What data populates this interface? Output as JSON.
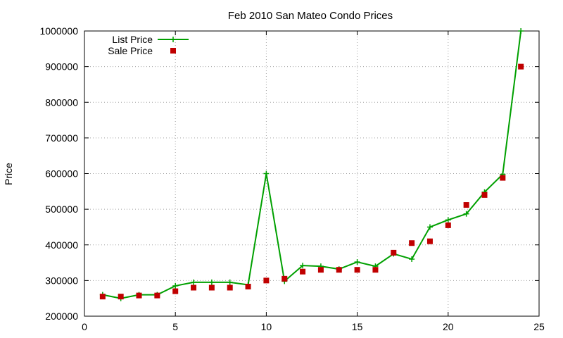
{
  "chart_data": {
    "type": "line",
    "title": "Feb 2010 San Mateo Condo Prices",
    "xlabel": "",
    "ylabel": "Price",
    "xlim": [
      0,
      25
    ],
    "ylim": [
      200000,
      1000000
    ],
    "xticks": [
      "0",
      "5",
      "10",
      "15",
      "20",
      "25"
    ],
    "yticks": [
      "200000",
      "300000",
      "400000",
      "500000",
      "600000",
      "700000",
      "800000",
      "900000",
      "1000000"
    ],
    "grid": true,
    "legend_position": "top-left",
    "x": [
      1,
      2,
      3,
      4,
      5,
      6,
      7,
      8,
      9,
      10,
      11,
      12,
      13,
      14,
      15,
      16,
      17,
      18,
      19,
      20,
      21,
      22,
      23,
      24
    ],
    "series": [
      {
        "name": "List Price",
        "style": "linespoints",
        "marker": "plus",
        "color": "#00a000",
        "values": [
          260000,
          250000,
          260000,
          260000,
          285000,
          295000,
          295000,
          295000,
          288000,
          600000,
          298000,
          342000,
          340000,
          332000,
          352000,
          340000,
          375000,
          360000,
          450000,
          470000,
          487000,
          548000,
          598000,
          1000000
        ]
      },
      {
        "name": "Sale Price",
        "style": "points",
        "marker": "square",
        "color": "#c00000",
        "values": [
          255000,
          255000,
          258000,
          258000,
          270000,
          280000,
          280000,
          280000,
          283000,
          300000,
          305000,
          325000,
          330000,
          330000,
          330000,
          330000,
          378000,
          405000,
          410000,
          455000,
          512000,
          540000,
          588000,
          900000
        ]
      }
    ]
  }
}
